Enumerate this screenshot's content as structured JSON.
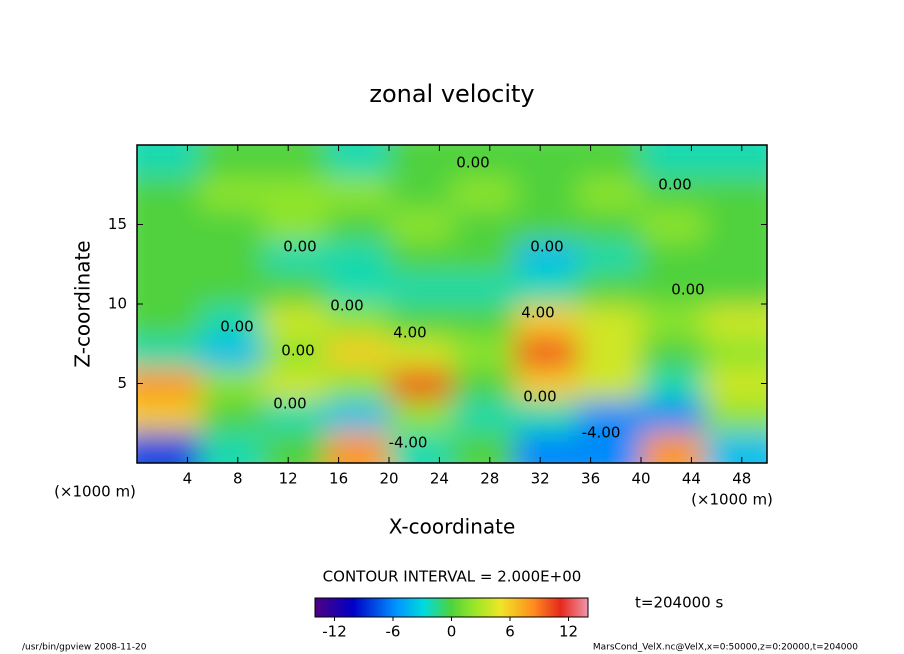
{
  "chart_data": {
    "type": "contour",
    "title": "zonal velocity",
    "xlabel": "X-coordinate",
    "ylabel": "Z-coordinate",
    "x_unit_label": "(×1000 m)",
    "x": [
      2.5,
      7.5,
      12.5,
      17.5,
      22.5,
      27.5,
      32.5,
      37.5,
      42.5,
      47.5
    ],
    "z": [
      1,
      3,
      5,
      7,
      9,
      11,
      13,
      15,
      17,
      19
    ],
    "values": [
      [
        -8,
        -2,
        0,
        8,
        -2,
        0,
        -6,
        -6,
        8,
        -4
      ],
      [
        6,
        0,
        -2,
        -4,
        2,
        -2,
        -2,
        -6,
        -6,
        2
      ],
      [
        8,
        2,
        4,
        2,
        10,
        0,
        6,
        4,
        -2,
        4
      ],
      [
        -2,
        -4,
        2,
        6,
        4,
        2,
        10,
        4,
        0,
        2
      ],
      [
        0,
        -2,
        4,
        2,
        0,
        0,
        6,
        4,
        2,
        4
      ],
      [
        0,
        0,
        0,
        -2,
        -2,
        -2,
        -2,
        0,
        0,
        0
      ],
      [
        0,
        0,
        -2,
        -2,
        0,
        0,
        -4,
        -2,
        0,
        0
      ],
      [
        0,
        0,
        2,
        0,
        2,
        0,
        0,
        0,
        2,
        0
      ],
      [
        0,
        2,
        2,
        2,
        0,
        2,
        0,
        2,
        0,
        0
      ],
      [
        -2,
        0,
        0,
        -2,
        0,
        0,
        0,
        0,
        -2,
        -2
      ]
    ],
    "xlim": [
      0,
      50
    ],
    "ylim": [
      0,
      20
    ],
    "xticks": [
      4,
      8,
      12,
      16,
      20,
      24,
      28,
      32,
      36,
      40,
      44,
      48
    ],
    "yticks": [
      5,
      10,
      15
    ],
    "contour_labels": [
      "0.00",
      "0.00",
      "0.00",
      "0.00",
      "0.00",
      "0.00",
      "0.00",
      "0.00",
      "0.00",
      "4.00",
      "4.00",
      "0.00",
      "-4.00",
      "-4.00"
    ],
    "contour_interval": "CONTOUR INTERVAL = 2.000E+00",
    "time_label": "t=204000 s",
    "colorbar_lim": [
      -14,
      14
    ],
    "colorbar_ticks": [
      -12,
      -6,
      0,
      6,
      12
    ],
    "footer_left": "/usr/bin/gpview  2008-11-20",
    "footer_right": "MarsCond_VelX.nc@VelX,x=0:50000,z=0:20000,t=204000"
  }
}
